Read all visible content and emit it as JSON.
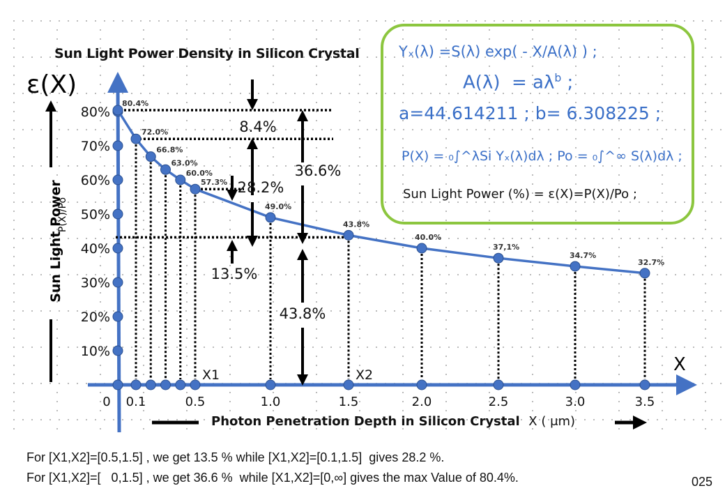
{
  "chart_data": {
    "type": "line",
    "title": "Sun Light Power Density in Silicon Crystal",
    "ylabel_symbol": "ε(X)",
    "ylabel": "Sun Light Power",
    "ylabel_sub": "P(X)/Po",
    "xlabel": "Photon Penetration Depth in Silicon Crystal",
    "xlabel_unit": "X ( μm)",
    "x_axis_symbol": "X",
    "x_ticks": [
      "0",
      "0.1",
      "0.5",
      "1.0",
      "1.5",
      "2.0",
      "2.5",
      "3.0",
      "3.5"
    ],
    "y_ticks": [
      "10%",
      "20%",
      "30%",
      "40%",
      "50%",
      "60%",
      "70%",
      "80%"
    ],
    "ylim": [
      0,
      85
    ],
    "xlim": [
      0,
      3.7
    ],
    "grid": "dotted",
    "series": [
      {
        "name": "ε(X)",
        "color": "#4472c4",
        "x": [
          0,
          0.1,
          0.2,
          0.3,
          0.4,
          0.5,
          1.0,
          1.5,
          2.0,
          2.5,
          3.0,
          3.5
        ],
        "y": [
          80.4,
          72.0,
          66.8,
          63.0,
          60.0,
          57.3,
          49.0,
          43.8,
          40.0,
          37.1,
          34.7,
          32.7
        ],
        "labels": [
          "80.4%",
          "72.0%",
          "66.8%",
          "63.0%",
          "60.0%",
          "57.3%",
          "49.0%",
          "43.8%",
          "40.0%",
          "37,1%",
          "34.7%",
          "32.7%"
        ]
      }
    ],
    "x_markers": [
      {
        "label": "X1",
        "x": 0.5
      },
      {
        "label": "X2",
        "x": 1.5
      }
    ],
    "annotations": [
      {
        "text": "8.4%",
        "from": 72.0,
        "to": 80.4
      },
      {
        "text": "28.2%",
        "from": 43.8,
        "to": 72.0
      },
      {
        "text": "13.5%",
        "from": 43.8,
        "to": 57.3
      },
      {
        "text": "36.6%",
        "from": 43.8,
        "to": 80.4
      },
      {
        "text": "43.8%",
        "from": 0,
        "to": 43.8
      }
    ]
  },
  "formulas": {
    "line1": "Yₓ(λ)  =S(λ) exp( - X/A(λ) ) ;",
    "line2_lhs": "A(λ)",
    "line2_rhs": "= aλ",
    "line2_exp": "b",
    "line2_end": " ;",
    "line3": "a=44.614211   ; b= 6.308225 ;",
    "line4": "P(X) = ₀∫^λSi Yₓ(λ)dλ ;  Po = ₀∫^∞ S(λ)dλ ;",
    "line5": "Sun Light Power (%) = ε(X)=P(X)/Po  ;"
  },
  "captions": [
    "For [X1,X2]=[0.5,1.5] , we get 13.5 % while [X1,X2]=[0.1,1.5]  gives 28.2 %.",
    "For [X1,X2]=[   0,1.5] , we get 36.6 %  while [X1,X2]=[0,∞] gives the max Value of 80.4%."
  ],
  "page_number": "025",
  "colors": {
    "curve": "#4472c4",
    "formula_text": "#3a6fc7",
    "formula_border": "#8cc63f"
  }
}
